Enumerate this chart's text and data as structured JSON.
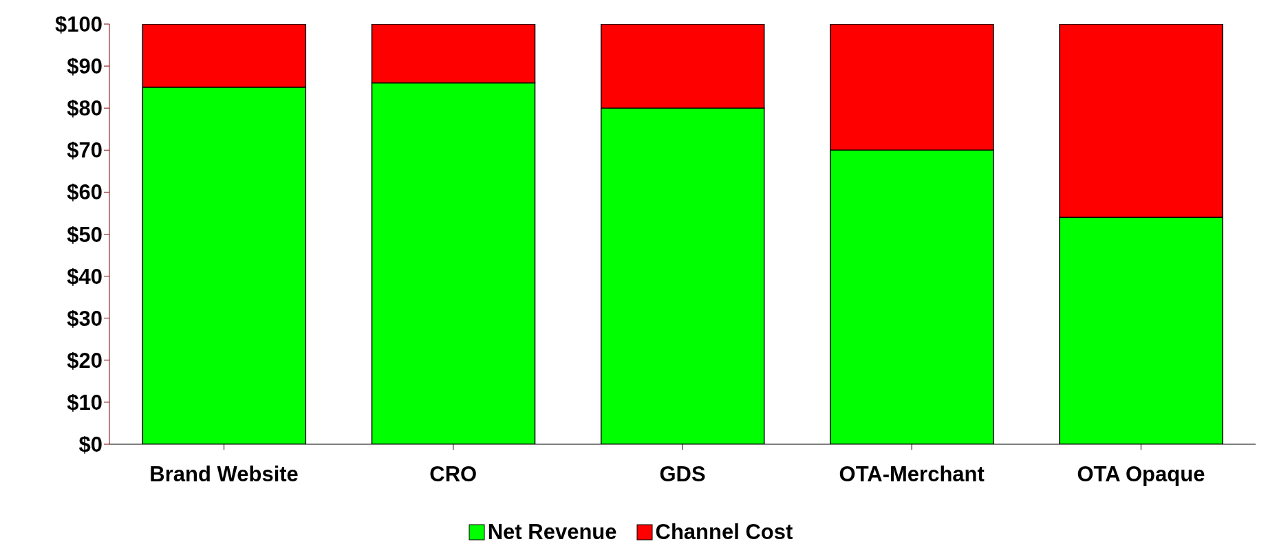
{
  "chart_data": {
    "type": "bar",
    "stacked": true,
    "categories": [
      "Brand Website",
      "CRO",
      "GDS",
      "OTA-Merchant",
      "OTA Opaque"
    ],
    "series": [
      {
        "name": "Net Revenue",
        "color": "#00ff00",
        "values": [
          85,
          86,
          80,
          70,
          54
        ]
      },
      {
        "name": "Channel Cost",
        "color": "#ff0000",
        "values": [
          15,
          14,
          20,
          30,
          46
        ]
      }
    ],
    "ylim": [
      0,
      100
    ],
    "yticks": [
      {
        "value": 0,
        "label": "$0"
      },
      {
        "value": 10,
        "label": "$10"
      },
      {
        "value": 20,
        "label": "$20"
      },
      {
        "value": 30,
        "label": "$30"
      },
      {
        "value": 40,
        "label": "$40"
      },
      {
        "value": 50,
        "label": "$50"
      },
      {
        "value": 60,
        "label": "$60"
      },
      {
        "value": 70,
        "label": "$70"
      },
      {
        "value": 80,
        "label": "$80"
      },
      {
        "value": 90,
        "label": "$90"
      },
      {
        "value": 100,
        "label": "$100"
      }
    ],
    "grid": false,
    "legend": "bottom"
  }
}
